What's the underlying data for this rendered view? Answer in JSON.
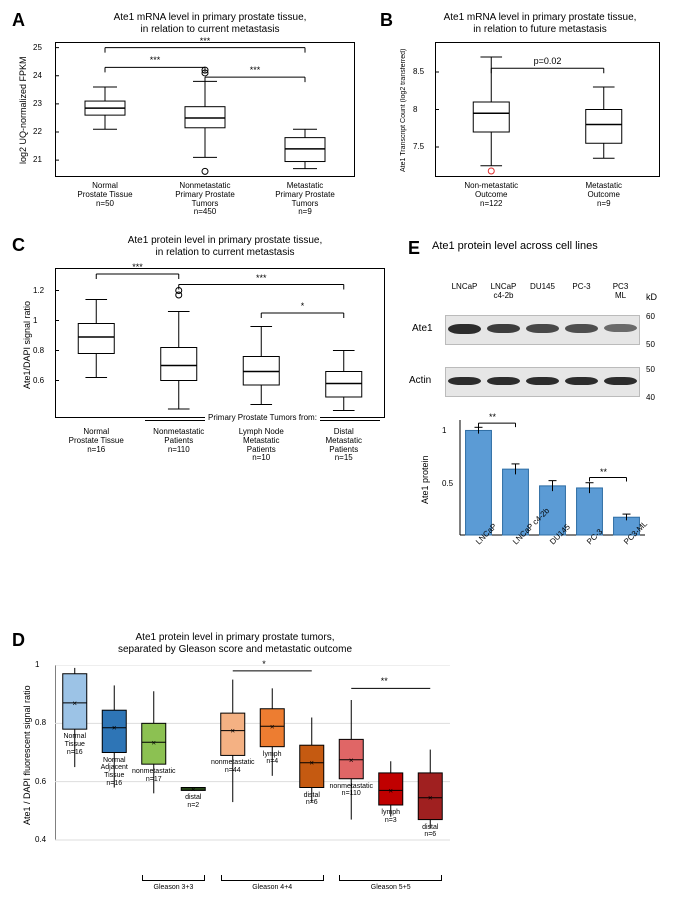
{
  "panelA": {
    "label": "A",
    "title": "Ate1 mRNA level in primary prostate tissue,\nin relation to current metastasis",
    "ylabel": "log2 UQ-normalized FPKM",
    "ylim": [
      20.4,
      25.2
    ],
    "yticks": [
      21,
      22,
      23,
      24,
      25
    ],
    "categories": [
      {
        "name": "Normal\nProstate Tissue\nn=50",
        "q1": 22.6,
        "median": 22.85,
        "q3": 23.1,
        "low": 22.1,
        "high": 23.6
      },
      {
        "name": "Nonmetastatic\nPrimary Prostate\nTumors\nn=450",
        "q1": 22.15,
        "median": 22.5,
        "q3": 22.9,
        "low": 21.1,
        "high": 23.8
      },
      {
        "name": "Metastatic\nPrimary Prostate\nTumors\nn=9",
        "q1": 20.95,
        "median": 21.4,
        "q3": 21.8,
        "low": 20.7,
        "high": 22.1
      }
    ],
    "outliers": [
      [
        1,
        24.1
      ],
      [
        1,
        24.2
      ],
      [
        1,
        20.6
      ]
    ],
    "sig": [
      {
        "a": 0,
        "b": 1,
        "y": 24.3,
        "text": "***"
      },
      {
        "a": 0,
        "b": 2,
        "y": 25.0,
        "text": "***"
      },
      {
        "a": 1,
        "b": 2,
        "y": 23.95,
        "text": "***"
      }
    ]
  },
  "panelB": {
    "label": "B",
    "title": "Ate1 mRNA level in primary prostate tissue,\nin relation to future metastasis",
    "ylabel": "Ate1 Transcript Count (log2 transferred)",
    "ylim": [
      7.1,
      8.9
    ],
    "yticks": [
      7.5,
      8.0,
      8.5
    ],
    "categories": [
      {
        "name": "Non-metastatic\nOutcome\nn=122",
        "q1": 7.7,
        "median": 7.95,
        "q3": 8.1,
        "low": 7.25,
        "high": 8.7,
        "medcolor": "#e03030"
      },
      {
        "name": "Metastatic\nOutcome\nn=9",
        "q1": 7.55,
        "median": 7.8,
        "q3": 8.0,
        "low": 7.35,
        "high": 8.3,
        "medcolor": "#e03030"
      }
    ],
    "sig": [
      {
        "a": 0,
        "b": 1,
        "y": 8.55,
        "text": "p=0.02"
      }
    ],
    "outliers": [
      [
        0,
        7.18,
        "#e03030"
      ]
    ]
  },
  "panelC": {
    "label": "C",
    "title": "Ate1 protein level in primary prostate tissue,\nin relation to current metastasis",
    "ylabel": "Ate1/DAPI signal ratio",
    "ylim": [
      0.35,
      1.35
    ],
    "yticks": [
      0.6,
      0.8,
      1.0,
      1.2
    ],
    "bracket_label": "Primary Prostate Tumors from:",
    "categories": [
      {
        "name": "Normal\nProstate Tissue\nn=16",
        "q1": 0.78,
        "median": 0.89,
        "q3": 0.98,
        "low": 0.62,
        "high": 1.14
      },
      {
        "name": "Nonmetastatic\nPatients\nn=110",
        "q1": 0.6,
        "median": 0.7,
        "q3": 0.82,
        "low": 0.41,
        "high": 1.06
      },
      {
        "name": "Lymph Node\nMetastatic\nPatients\nn=10",
        "q1": 0.57,
        "median": 0.66,
        "q3": 0.76,
        "low": 0.44,
        "high": 0.96
      },
      {
        "name": "Distal\nMetastatic\nPatients\nn=15",
        "q1": 0.49,
        "median": 0.58,
        "q3": 0.66,
        "low": 0.4,
        "high": 0.8
      }
    ],
    "outliers": [
      [
        1,
        1.17
      ],
      [
        1,
        1.2
      ]
    ],
    "sig": [
      {
        "a": 0,
        "b": 1,
        "y": 1.31,
        "text": "***"
      },
      {
        "a": 1,
        "b": 3,
        "y": 1.24,
        "text": "***"
      },
      {
        "a": 2,
        "b": 3,
        "y": 1.05,
        "text": "*"
      }
    ]
  },
  "panelD": {
    "label": "D",
    "title": "Ate1 protein level in primary prostate tumors,\nseparated by Gleason score and metastatic outcome",
    "ylabel": "Ate1 / DAPI fluorescent signal ratio",
    "ylim": [
      0.4,
      1.0
    ],
    "yticks": [
      0.4,
      0.6,
      0.8,
      1.0
    ],
    "gleason_labels": [
      "Gleason 3+3",
      "Gleason 4+4",
      "Gleason 5+5"
    ],
    "boxes": [
      {
        "label": "Normal\nTissue\nn=16",
        "color": "#9cc3e6",
        "q1": 0.78,
        "median": 0.87,
        "q3": 0.97,
        "low": 0.65,
        "high": 0.99
      },
      {
        "label": "Normal\nAdjacent\nTissue\nn=16",
        "color": "#2e75b6",
        "q1": 0.7,
        "median": 0.785,
        "q3": 0.845,
        "low": 0.58,
        "high": 0.93
      },
      {
        "label": "nonmetastatic\nn=17",
        "color": "#8cc152",
        "q1": 0.66,
        "median": 0.735,
        "q3": 0.8,
        "low": 0.56,
        "high": 0.91
      },
      {
        "label": "distal\nn=2",
        "color": "#4c8c2b",
        "q1": 0.57,
        "median": 0.575,
        "q3": 0.58,
        "low": 0.57,
        "high": 0.58
      },
      {
        "label": "nonmetastatic\nn=44",
        "color": "#f4b183",
        "q1": 0.69,
        "median": 0.775,
        "q3": 0.835,
        "low": 0.53,
        "high": 0.95
      },
      {
        "label": "lymph\nn=4",
        "color": "#ed7d31",
        "q1": 0.72,
        "median": 0.79,
        "q3": 0.85,
        "low": 0.62,
        "high": 0.92
      },
      {
        "label": "distal\nn=6",
        "color": "#c55a11",
        "q1": 0.58,
        "median": 0.665,
        "q3": 0.725,
        "low": 0.53,
        "high": 0.82
      },
      {
        "label": "nonmetastatic\nn=110",
        "color": "#e06666",
        "q1": 0.61,
        "median": 0.675,
        "q3": 0.745,
        "low": 0.47,
        "high": 0.88
      },
      {
        "label": "lymph\nn=3",
        "color": "#c00000",
        "q1": 0.52,
        "median": 0.57,
        "q3": 0.63,
        "low": 0.48,
        "high": 0.67
      },
      {
        "label": "distal\nn=6",
        "color": "#a02020",
        "q1": 0.47,
        "median": 0.545,
        "q3": 0.63,
        "low": 0.44,
        "high": 0.71
      }
    ],
    "sig": [
      {
        "a": 4,
        "b": 6,
        "y": 0.98,
        "text": "*"
      },
      {
        "a": 7,
        "b": 9,
        "y": 0.92,
        "text": "**"
      }
    ]
  },
  "panelE": {
    "label": "E",
    "title": "Ate1 protein level across cell lines",
    "lanes": [
      "LNCaP",
      "LNCaP\nc4-2b",
      "DU145",
      "PC-3",
      "PC3\nML"
    ],
    "markers_top": [
      "60",
      "50"
    ],
    "markers_bot": [
      "50",
      "40"
    ],
    "kD": "kD",
    "row_labels": [
      "Ate1",
      "Actin"
    ],
    "band_intensity_top": [
      1.0,
      0.85,
      0.75,
      0.7,
      0.45
    ],
    "band_intensity_bot": [
      0.9,
      0.9,
      0.9,
      0.9,
      0.9
    ],
    "bar": {
      "ylabel": "Ate1 protein",
      "ylim": [
        0,
        1.1
      ],
      "yticks": [
        0.5,
        1
      ],
      "cats": [
        "LNCaP",
        "LNCaP\nc4-2b",
        "DU145",
        "PC-3",
        "PC3-ML"
      ],
      "vals": [
        1.0,
        0.63,
        0.47,
        0.45,
        0.17
      ],
      "err": [
        0.03,
        0.05,
        0.05,
        0.05,
        0.03
      ],
      "color": "#5b9bd5",
      "sig": [
        {
          "a": 0,
          "b": 1,
          "y": 1.07,
          "text": "**"
        },
        {
          "a": 3,
          "b": 4,
          "y": 0.55,
          "text": "**"
        }
      ]
    }
  }
}
